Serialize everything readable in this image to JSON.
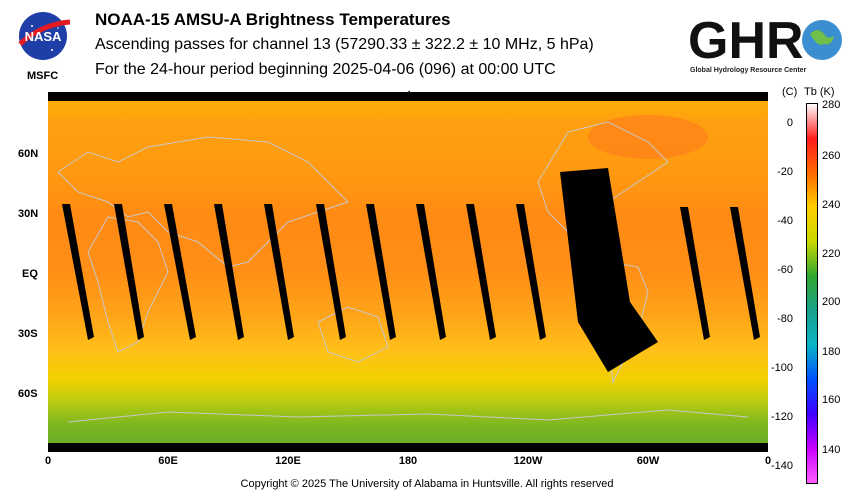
{
  "header": {
    "title": "NOAA-15 AMSU-A Brightness Temperatures",
    "subtitle": "Ascending passes for channel 13 (57290.33 ± 322.2 ± 10 MHz, 5 hPa)",
    "period": "For the 24-hour period beginning 2025-04-06 (096) at 00:00 UTC"
  },
  "logos": {
    "nasa_text": "NASA",
    "msfc_label": "MSFC",
    "ghrc_text": "GHRC",
    "ghrc_caption": "Global Hydrology Resource Center"
  },
  "map": {
    "lat_labels": [
      "60N",
      "30N",
      "EQ",
      "30S",
      "60S"
    ],
    "lon_labels": [
      "0",
      "60E",
      "120E",
      "180",
      "120W",
      "60W",
      "0"
    ],
    "arrow_glyph": "⟵"
  },
  "colorbar": {
    "header_c": "(C)",
    "header_k": "Tb  (K)",
    "celsius_ticks": [
      "0",
      "-20",
      "-40",
      "-60",
      "-80",
      "-100",
      "-120",
      "-140"
    ],
    "kelvin_ticks": [
      "280",
      "260",
      "240",
      "220",
      "200",
      "180",
      "160",
      "140"
    ],
    "colors": [
      "#ffffff",
      "#ff1e1e",
      "#ff6a00",
      "#ffd000",
      "#c8d800",
      "#2fa82f",
      "#19a08c",
      "#0ab4c8",
      "#0050ff",
      "#4000ff",
      "#c800ff",
      "#ff60ff"
    ]
  },
  "footer": {
    "copyright": "Copyright © 2025 The University of Alabama in Huntsville.  All rights reserved"
  }
}
